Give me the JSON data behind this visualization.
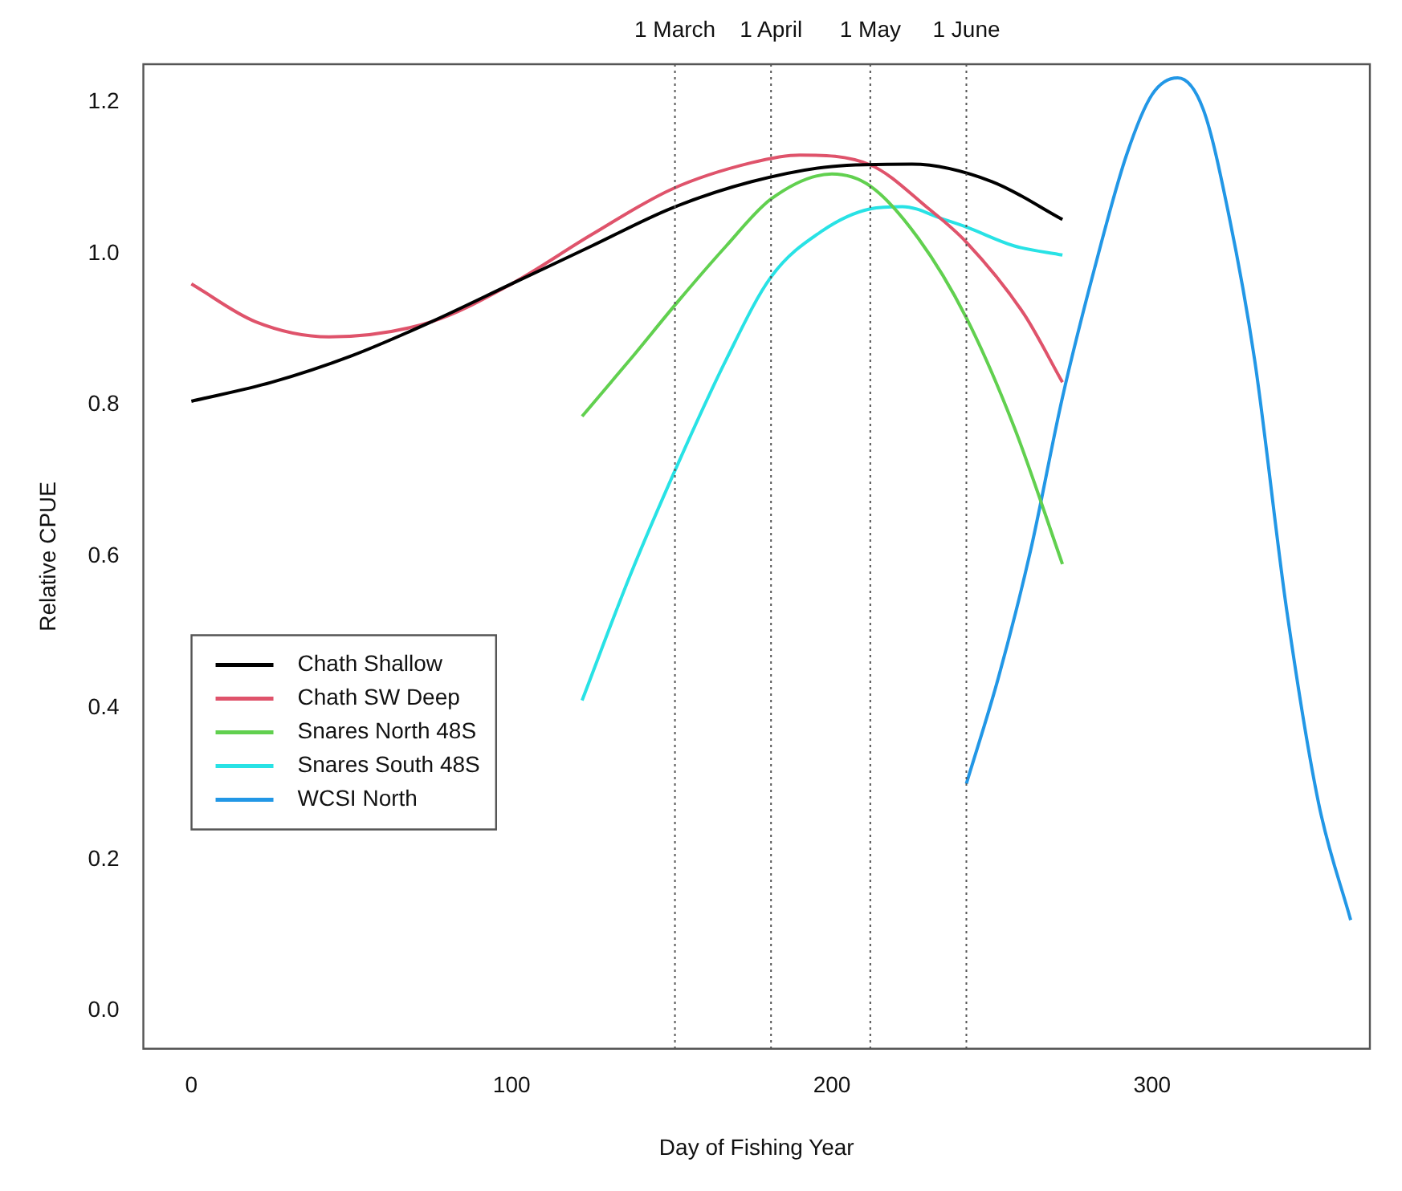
{
  "chart_data": {
    "type": "line",
    "xlabel": "Day of Fishing Year",
    "ylabel": "Relative CPUE",
    "xlim": [
      -15,
      368
    ],
    "xticks": [
      0,
      100,
      200,
      300
    ],
    "ylim": [
      -0.05,
      1.25
    ],
    "yticks": [
      {
        "value": 0,
        "label": "0.0"
      },
      0.2,
      0.4,
      0.6,
      0.8,
      {
        "value": 1,
        "label": "1.0"
      },
      1.2
    ],
    "grid": false,
    "legend": "left",
    "ref_lines": [
      {
        "axis": "x",
        "value": 151,
        "label": "1 March",
        "line_style": "dotted",
        "color": "#555555"
      },
      {
        "axis": "x",
        "value": 181,
        "label": "1 April",
        "line_style": "dotted",
        "color": "#555555"
      },
      {
        "axis": "x",
        "value": 212,
        "label": "1 May",
        "line_style": "dotted",
        "color": "#555555"
      },
      {
        "axis": "x",
        "value": 242,
        "label": "1 June",
        "line_style": "dotted",
        "color": "#555555"
      }
    ],
    "series": [
      {
        "name": "Chath Shallow",
        "color": "#000000",
        "x": [
          0,
          25,
          50,
          75,
          100,
          125,
          150,
          175,
          200,
          225,
          250,
          272
        ],
        "values": [
          0.805,
          0.83,
          0.865,
          0.91,
          0.96,
          1.01,
          1.06,
          1.095,
          1.115,
          1.118,
          1.095,
          1.045
        ]
      },
      {
        "name": "Chath SW Deep",
        "color": "#df536b",
        "x": [
          0,
          20,
          43,
          75,
          100,
          125,
          150,
          175,
          190,
          212,
          230,
          242,
          260,
          272
        ],
        "values": [
          0.96,
          0.91,
          0.89,
          0.91,
          0.96,
          1.025,
          1.085,
          1.12,
          1.13,
          1.117,
          1.06,
          1.015,
          0.92,
          0.83
        ]
      },
      {
        "name": "Snares North 48S",
        "color": "#61d04f",
        "x": [
          122,
          137,
          152,
          167,
          181,
          200,
          212,
          227,
          242,
          257,
          272
        ],
        "values": [
          0.785,
          0.86,
          0.937,
          1.01,
          1.072,
          1.105,
          1.089,
          1.02,
          0.915,
          0.77,
          0.59
        ]
      },
      {
        "name": "Snares South 48S",
        "color": "#28e2e5",
        "x": [
          122,
          137,
          152,
          167,
          181,
          197,
          212,
          222,
          235,
          242,
          257,
          272
        ],
        "values": [
          0.41,
          0.575,
          0.723,
          0.86,
          0.969,
          1.03,
          1.059,
          1.062,
          1.045,
          1.035,
          1.01,
          0.998
        ]
      },
      {
        "name": "WCSI North",
        "color": "#2297e6",
        "x": [
          242,
          252,
          262,
          272,
          282,
          292,
          300,
          308,
          316,
          324,
          332,
          342,
          352,
          362
        ],
        "values": [
          0.3,
          0.44,
          0.607,
          0.81,
          0.98,
          1.13,
          1.21,
          1.232,
          1.19,
          1.05,
          0.86,
          0.53,
          0.274,
          0.12
        ]
      }
    ]
  }
}
